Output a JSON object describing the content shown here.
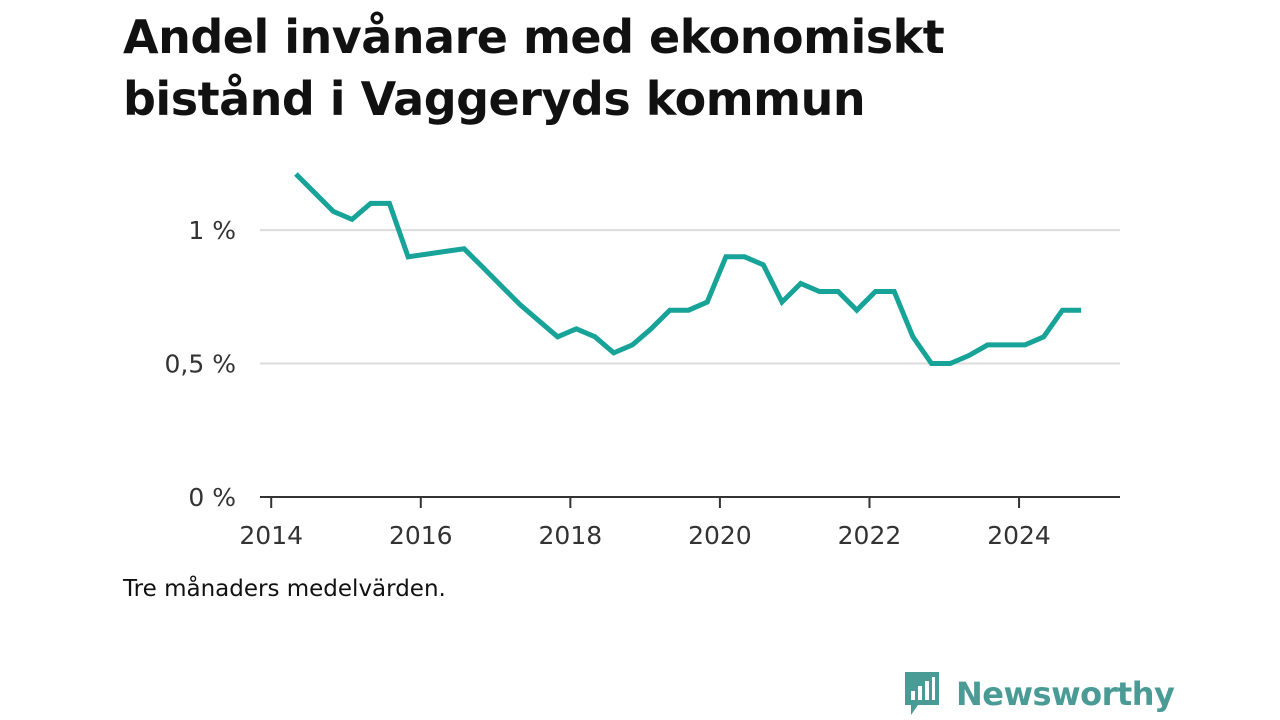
{
  "title": "Andel invånare med ekonomiskt bistånd i Vaggeryds kommun",
  "note": "Tre månaders medelvärden.",
  "brand": {
    "name": "Newsworthy",
    "icon": "bar-chart-speech-bubble-icon",
    "color": "#4a9b95"
  },
  "chart_data": {
    "type": "line",
    "title": "Andel invånare med ekonomiskt bistånd i Vaggeryds kommun",
    "xlabel": "",
    "ylabel": "",
    "xlim": [
      2013.85,
      2025.35
    ],
    "ylim": [
      0,
      1.3
    ],
    "xticks": [
      2014,
      2016,
      2018,
      2020,
      2022,
      2024
    ],
    "yticks": [
      {
        "value": 0,
        "label": "0 %"
      },
      {
        "value": 0.5,
        "label": "0,5 %"
      },
      {
        "value": 1,
        "label": "1 %"
      }
    ],
    "grid": true,
    "line_color": "#17a398",
    "series": [
      {
        "x": [
          2014.33,
          2014.58,
          2014.83,
          2015.08,
          2015.33,
          2015.58,
          2015.83,
          2016.08,
          2016.33,
          2016.58,
          2016.83,
          2017.08,
          2017.33,
          2017.58,
          2017.83,
          2018.08,
          2018.33,
          2018.58,
          2018.83,
          2019.08,
          2019.33,
          2019.58,
          2019.83,
          2020.08,
          2020.33,
          2020.58,
          2020.83,
          2021.08,
          2021.33,
          2021.58,
          2021.83,
          2022.08,
          2022.33,
          2022.58,
          2022.83,
          2023.08,
          2023.33,
          2023.58,
          2023.83,
          2024.08,
          2024.33,
          2024.58,
          2024.83
        ],
        "y": [
          1.21,
          1.14,
          1.07,
          1.04,
          1.1,
          1.1,
          0.9,
          0.91,
          0.92,
          0.93,
          0.86,
          0.79,
          0.72,
          0.66,
          0.6,
          0.63,
          0.6,
          0.54,
          0.57,
          0.63,
          0.7,
          0.7,
          0.73,
          0.9,
          0.9,
          0.87,
          0.73,
          0.8,
          0.77,
          0.77,
          0.7,
          0.77,
          0.77,
          0.6,
          0.5,
          0.5,
          0.53,
          0.57,
          0.57,
          0.57,
          0.6,
          0.7,
          0.7
        ]
      }
    ]
  }
}
